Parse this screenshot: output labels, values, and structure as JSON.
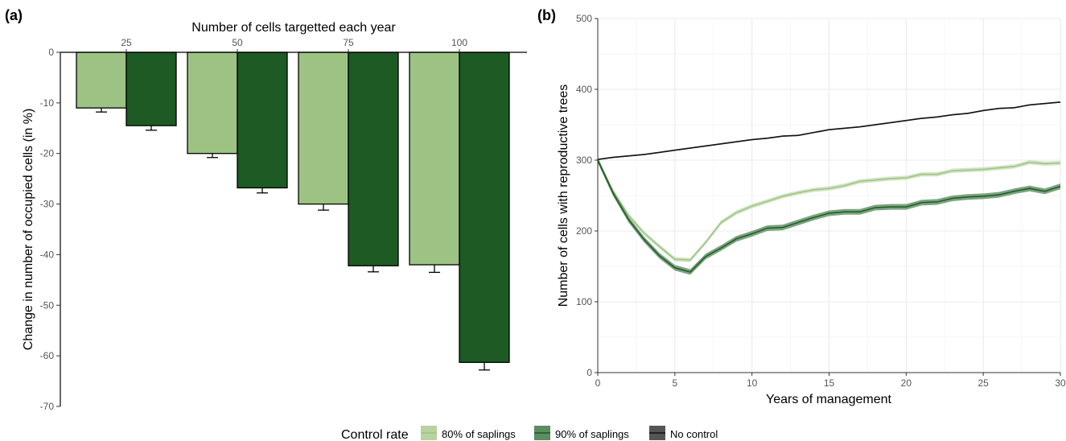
{
  "colors": {
    "light_green": "#9dc384",
    "dark_green": "#1d5a24",
    "no_control": "#111111",
    "grid": "#ebebeb",
    "band_light": "#c8deb7",
    "band_dark": "#5c8c62",
    "band_black": "#555555"
  },
  "legend": {
    "title": "Control rate",
    "items": [
      {
        "label": "80% of saplings",
        "color": "#9dc384",
        "fill": "#b6d3a1"
      },
      {
        "label": "90% of saplings",
        "color": "#1d5a24",
        "fill": "#5c8c62"
      },
      {
        "label": "No control",
        "color": "#111111",
        "fill": "#555555"
      }
    ]
  },
  "chart_data": [
    {
      "panel": "(a)",
      "type": "bar",
      "xlabel": "Number of cells targetted each year",
      "ylabel": "Change in number of occupied cells (in %)",
      "x_axis_position": "top",
      "categories": [
        "25",
        "50",
        "75",
        "100"
      ],
      "ylim": [
        -70,
        0
      ],
      "yticks": [
        0,
        -10,
        -20,
        -30,
        -40,
        -50,
        -60,
        -70
      ],
      "series": [
        {
          "values": [
            -11,
            -20,
            -30,
            -42
          ],
          "error": [
            0.8,
            0.8,
            1.2,
            1.5
          ],
          "color": "#9dc384"
        },
        {
          "values": [
            -14.5,
            -26.8,
            -42.2,
            -61.3
          ],
          "error": [
            0.9,
            1.0,
            1.2,
            1.5
          ],
          "color": "#1d5a24"
        }
      ]
    },
    {
      "panel": "(b)",
      "type": "line",
      "xlabel": "Years of management",
      "ylabel": "Number of cells with reproductive trees",
      "xlim": [
        0,
        30
      ],
      "ylim": [
        0,
        500
      ],
      "xticks": [
        0,
        5,
        10,
        15,
        20,
        25,
        30
      ],
      "yticks": [
        0,
        100,
        200,
        300,
        400,
        500
      ],
      "grid": true,
      "x": [
        0,
        1,
        2,
        3,
        4,
        5,
        6,
        7,
        8,
        9,
        10,
        11,
        12,
        13,
        14,
        15,
        16,
        17,
        18,
        19,
        20,
        21,
        22,
        23,
        24,
        25,
        26,
        27,
        28,
        29,
        30
      ],
      "series": [
        {
          "name": "80% of saplings",
          "color": "#9dc384",
          "band": 3,
          "values": [
            300,
            256,
            222,
            197,
            178,
            160,
            159,
            184,
            212,
            226,
            235,
            242,
            249,
            254,
            258,
            260,
            264,
            270,
            272,
            274,
            275,
            280,
            280,
            285,
            286,
            287,
            289,
            291,
            297,
            295,
            296
          ]
        },
        {
          "name": "90% of saplings",
          "color": "#1d5a24",
          "band": 4,
          "values": [
            300,
            253,
            216,
            188,
            165,
            148,
            142,
            164,
            176,
            189,
            196,
            204,
            205,
            212,
            219,
            225,
            227,
            227,
            233,
            234,
            234,
            240,
            241,
            246,
            248,
            249,
            251,
            256,
            260,
            256,
            263
          ]
        },
        {
          "name": "No control",
          "color": "#111111",
          "band": 1,
          "values": [
            301,
            304,
            306,
            308,
            311,
            314,
            317,
            320,
            323,
            326,
            329,
            331,
            334,
            335,
            339,
            343,
            345,
            347,
            350,
            353,
            356,
            359,
            361,
            364,
            366,
            370,
            373,
            374,
            378,
            380,
            382
          ]
        }
      ]
    }
  ]
}
